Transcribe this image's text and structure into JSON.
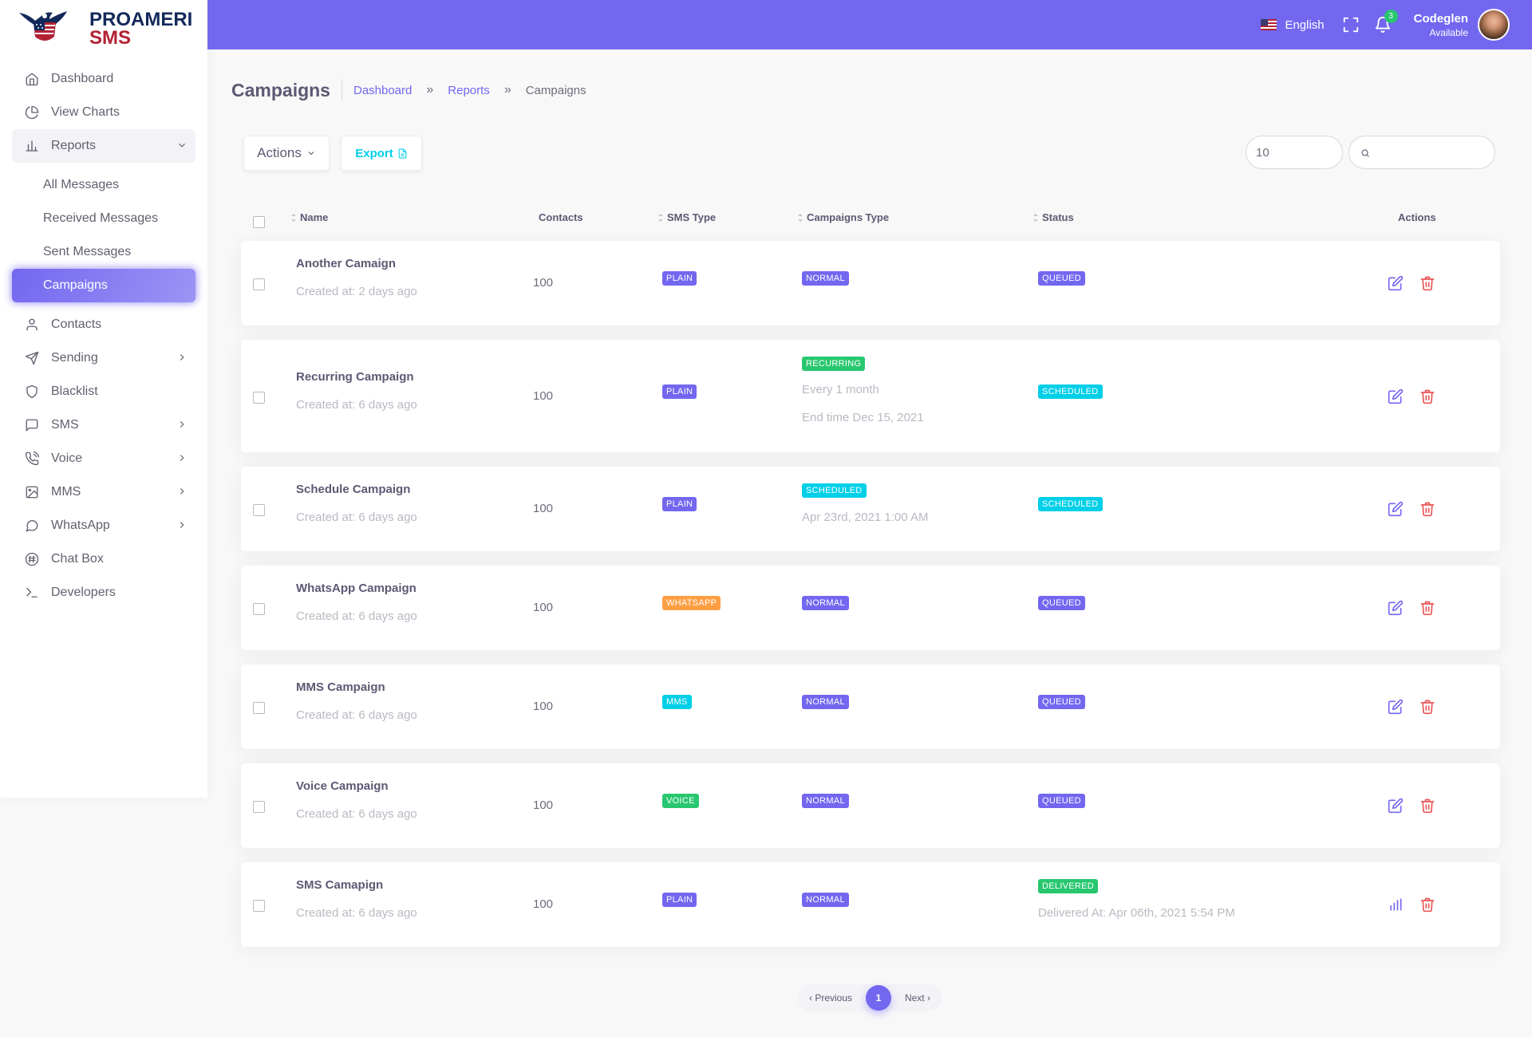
{
  "brand": {
    "line1": "PROAMERICA",
    "line2": "SMS"
  },
  "sidebar": {
    "items": [
      {
        "label": "Dashboard",
        "icon": "home-icon"
      },
      {
        "label": "View Charts",
        "icon": "pie-chart-icon"
      },
      {
        "label": "Reports",
        "icon": "bar-chart-icon",
        "expanded": true
      },
      {
        "label": "Contacts",
        "icon": "user-icon"
      },
      {
        "label": "Sending",
        "icon": "send-icon"
      },
      {
        "label": "Blacklist",
        "icon": "shield-icon"
      },
      {
        "label": "SMS",
        "icon": "message-square-icon"
      },
      {
        "label": "Voice",
        "icon": "phone-call-icon"
      },
      {
        "label": "MMS",
        "icon": "image-icon"
      },
      {
        "label": "WhatsApp",
        "icon": "message-circle-icon"
      },
      {
        "label": "Chat Box",
        "icon": "hash-icon"
      },
      {
        "label": "Developers",
        "icon": "terminal-icon"
      }
    ],
    "reports_sub": [
      {
        "label": "All Messages"
      },
      {
        "label": "Received Messages"
      },
      {
        "label": "Sent Messages"
      },
      {
        "label": "Campaigns",
        "active": true
      }
    ]
  },
  "header": {
    "language": "English",
    "notifications_count": "3",
    "user_name": "Codeglen",
    "user_status": "Available"
  },
  "page": {
    "title": "Campaigns",
    "breadcrumbs": [
      "Dashboard",
      "Reports",
      "Campaigns"
    ],
    "sep": "»"
  },
  "toolbar": {
    "actions_label": "Actions",
    "export_label": "Export",
    "per_page": "10",
    "search_placeholder": ""
  },
  "table": {
    "headers": [
      "Name",
      "Contacts",
      "SMS Type",
      "Campaigns Type",
      "Status",
      "Actions"
    ],
    "rows": [
      {
        "name": "Another Camaign",
        "created": "Created at: 2 days ago",
        "contacts": "100",
        "sms_type": "PLAIN",
        "camp_type": "NORMAL",
        "status": "QUEUED"
      },
      {
        "name": "Recurring Campaign",
        "created": "Created at: 6 days ago",
        "contacts": "100",
        "sms_type": "PLAIN",
        "camp_type": "RECURRING",
        "camp_line1": "Every 1 month",
        "camp_line2": "End time Dec 15, 2021",
        "status": "SCHEDULED"
      },
      {
        "name": "Schedule Campaign",
        "created": "Created at: 6 days ago",
        "contacts": "100",
        "sms_type": "PLAIN",
        "camp_type": "SCHEDULED",
        "camp_line1": "Apr 23rd, 2021 1:00 AM",
        "status": "SCHEDULED"
      },
      {
        "name": "WhatsApp Campaign",
        "created": "Created at: 6 days ago",
        "contacts": "100",
        "sms_type": "WHATSAPP",
        "camp_type": "NORMAL",
        "status": "QUEUED"
      },
      {
        "name": "MMS Campaign",
        "created": "Created at: 6 days ago",
        "contacts": "100",
        "sms_type": "MMS",
        "camp_type": "NORMAL",
        "status": "QUEUED"
      },
      {
        "name": "Voice Campaign",
        "created": "Created at: 6 days ago",
        "contacts": "100",
        "sms_type": "VOICE",
        "camp_type": "NORMAL",
        "status": "QUEUED"
      },
      {
        "name": "SMS Camapign",
        "created": "Created at: 6 days ago",
        "contacts": "100",
        "sms_type": "PLAIN",
        "camp_type": "NORMAL",
        "status": "DELIVERED",
        "status_line": "Delivered At: Apr 06th, 2021 5:54 PM"
      }
    ]
  },
  "pagination": {
    "prev": "Previous",
    "current": "1",
    "next": "Next"
  },
  "colors": {
    "primary": "#7367f0",
    "success": "#28c76f",
    "info": "#00cfe8",
    "warning": "#ff9f43",
    "danger": "#ea5455"
  }
}
